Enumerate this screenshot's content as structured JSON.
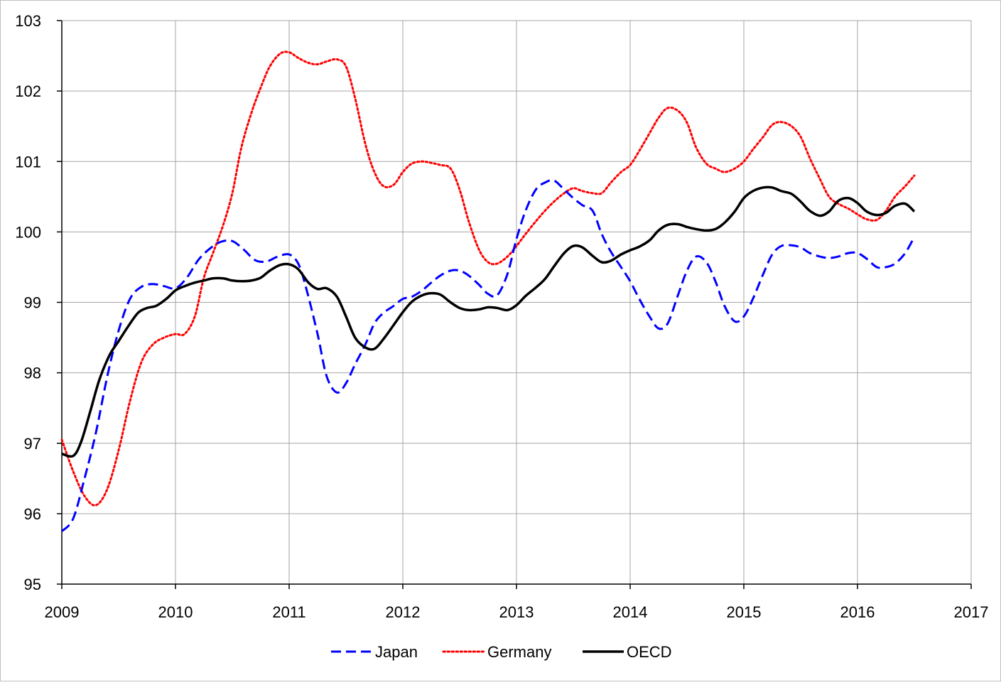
{
  "chart_data": {
    "type": "line",
    "title": "",
    "xlabel": "",
    "ylabel": "",
    "xlim": [
      2009,
      2017
    ],
    "ylim": [
      95,
      103
    ],
    "x_ticks": [
      "2009",
      "2010",
      "2011",
      "2012",
      "2013",
      "2014",
      "2015",
      "2016",
      "2017"
    ],
    "y_ticks": [
      "95",
      "96",
      "97",
      "98",
      "99",
      "100",
      "101",
      "102",
      "103"
    ],
    "grid": true,
    "legend_position": "bottom-center",
    "series": [
      {
        "name": "Japan",
        "color": "#0000ff",
        "style": "dashed",
        "points": [
          [
            2009.0,
            95.75
          ],
          [
            2009.1,
            95.93
          ],
          [
            2009.2,
            96.5
          ],
          [
            2009.3,
            97.15
          ],
          [
            2009.4,
            97.95
          ],
          [
            2009.5,
            98.6
          ],
          [
            2009.6,
            99.05
          ],
          [
            2009.7,
            99.22
          ],
          [
            2009.8,
            99.26
          ],
          [
            2009.9,
            99.23
          ],
          [
            2010.0,
            99.2
          ],
          [
            2010.1,
            99.35
          ],
          [
            2010.2,
            99.6
          ],
          [
            2010.3,
            99.76
          ],
          [
            2010.4,
            99.86
          ],
          [
            2010.5,
            99.87
          ],
          [
            2010.6,
            99.75
          ],
          [
            2010.7,
            99.6
          ],
          [
            2010.8,
            99.58
          ],
          [
            2010.9,
            99.65
          ],
          [
            2011.0,
            99.68
          ],
          [
            2011.08,
            99.55
          ],
          [
            2011.15,
            99.2
          ],
          [
            2011.25,
            98.55
          ],
          [
            2011.33,
            97.95
          ],
          [
            2011.42,
            97.72
          ],
          [
            2011.5,
            97.85
          ],
          [
            2011.58,
            98.12
          ],
          [
            2011.67,
            98.4
          ],
          [
            2011.75,
            98.7
          ],
          [
            2011.83,
            98.85
          ],
          [
            2011.92,
            98.95
          ],
          [
            2012.0,
            99.05
          ],
          [
            2012.08,
            99.08
          ],
          [
            2012.17,
            99.17
          ],
          [
            2012.25,
            99.28
          ],
          [
            2012.33,
            99.38
          ],
          [
            2012.42,
            99.45
          ],
          [
            2012.5,
            99.45
          ],
          [
            2012.58,
            99.38
          ],
          [
            2012.67,
            99.25
          ],
          [
            2012.75,
            99.12
          ],
          [
            2012.83,
            99.1
          ],
          [
            2012.92,
            99.4
          ],
          [
            2013.0,
            99.9
          ],
          [
            2013.08,
            100.3
          ],
          [
            2013.17,
            100.6
          ],
          [
            2013.25,
            100.7
          ],
          [
            2013.33,
            100.73
          ],
          [
            2013.42,
            100.6
          ],
          [
            2013.5,
            100.48
          ],
          [
            2013.58,
            100.38
          ],
          [
            2013.67,
            100.3
          ],
          [
            2013.75,
            99.97
          ],
          [
            2013.83,
            99.72
          ],
          [
            2013.92,
            99.5
          ],
          [
            2014.0,
            99.3
          ],
          [
            2014.08,
            99.05
          ],
          [
            2014.17,
            98.8
          ],
          [
            2014.25,
            98.63
          ],
          [
            2014.33,
            98.7
          ],
          [
            2014.42,
            99.1
          ],
          [
            2014.5,
            99.45
          ],
          [
            2014.58,
            99.65
          ],
          [
            2014.67,
            99.57
          ],
          [
            2014.75,
            99.3
          ],
          [
            2014.83,
            98.95
          ],
          [
            2014.92,
            98.73
          ],
          [
            2015.0,
            98.8
          ],
          [
            2015.08,
            99.05
          ],
          [
            2015.17,
            99.4
          ],
          [
            2015.25,
            99.68
          ],
          [
            2015.33,
            99.8
          ],
          [
            2015.42,
            99.81
          ],
          [
            2015.5,
            99.78
          ],
          [
            2015.58,
            99.7
          ],
          [
            2015.67,
            99.65
          ],
          [
            2015.75,
            99.63
          ],
          [
            2015.83,
            99.65
          ],
          [
            2015.92,
            99.7
          ],
          [
            2016.0,
            99.7
          ],
          [
            2016.08,
            99.62
          ],
          [
            2016.17,
            99.5
          ],
          [
            2016.25,
            99.5
          ],
          [
            2016.33,
            99.55
          ],
          [
            2016.42,
            99.7
          ],
          [
            2016.5,
            99.93
          ]
        ]
      },
      {
        "name": "Germany",
        "color": "#ff0000",
        "style": "dotted",
        "points": [
          [
            2009.0,
            97.05
          ],
          [
            2009.1,
            96.6
          ],
          [
            2009.2,
            96.25
          ],
          [
            2009.3,
            96.12
          ],
          [
            2009.4,
            96.35
          ],
          [
            2009.5,
            96.9
          ],
          [
            2009.6,
            97.6
          ],
          [
            2009.7,
            98.15
          ],
          [
            2009.8,
            98.4
          ],
          [
            2009.9,
            98.5
          ],
          [
            2010.0,
            98.55
          ],
          [
            2010.08,
            98.55
          ],
          [
            2010.17,
            98.8
          ],
          [
            2010.25,
            99.35
          ],
          [
            2010.33,
            99.7
          ],
          [
            2010.42,
            100.1
          ],
          [
            2010.5,
            100.55
          ],
          [
            2010.58,
            101.2
          ],
          [
            2010.67,
            101.7
          ],
          [
            2010.75,
            102.05
          ],
          [
            2010.83,
            102.35
          ],
          [
            2010.92,
            102.53
          ],
          [
            2011.0,
            102.55
          ],
          [
            2011.08,
            102.47
          ],
          [
            2011.17,
            102.4
          ],
          [
            2011.25,
            102.38
          ],
          [
            2011.33,
            102.42
          ],
          [
            2011.42,
            102.45
          ],
          [
            2011.5,
            102.35
          ],
          [
            2011.58,
            101.9
          ],
          [
            2011.67,
            101.25
          ],
          [
            2011.75,
            100.85
          ],
          [
            2011.83,
            100.65
          ],
          [
            2011.92,
            100.67
          ],
          [
            2012.0,
            100.85
          ],
          [
            2012.08,
            100.97
          ],
          [
            2012.17,
            101.0
          ],
          [
            2012.25,
            100.98
          ],
          [
            2012.33,
            100.95
          ],
          [
            2012.42,
            100.9
          ],
          [
            2012.5,
            100.6
          ],
          [
            2012.58,
            100.15
          ],
          [
            2012.67,
            99.75
          ],
          [
            2012.75,
            99.57
          ],
          [
            2012.83,
            99.55
          ],
          [
            2012.92,
            99.65
          ],
          [
            2013.0,
            99.8
          ],
          [
            2013.08,
            99.97
          ],
          [
            2013.17,
            100.15
          ],
          [
            2013.25,
            100.3
          ],
          [
            2013.33,
            100.43
          ],
          [
            2013.42,
            100.55
          ],
          [
            2013.5,
            100.62
          ],
          [
            2013.58,
            100.58
          ],
          [
            2013.67,
            100.55
          ],
          [
            2013.75,
            100.55
          ],
          [
            2013.83,
            100.7
          ],
          [
            2013.92,
            100.85
          ],
          [
            2014.0,
            100.95
          ],
          [
            2014.08,
            101.15
          ],
          [
            2014.17,
            101.4
          ],
          [
            2014.25,
            101.62
          ],
          [
            2014.33,
            101.76
          ],
          [
            2014.42,
            101.72
          ],
          [
            2014.5,
            101.55
          ],
          [
            2014.58,
            101.2
          ],
          [
            2014.67,
            100.97
          ],
          [
            2014.75,
            100.9
          ],
          [
            2014.83,
            100.85
          ],
          [
            2014.92,
            100.9
          ],
          [
            2015.0,
            101.0
          ],
          [
            2015.08,
            101.17
          ],
          [
            2015.17,
            101.35
          ],
          [
            2015.25,
            101.52
          ],
          [
            2015.33,
            101.56
          ],
          [
            2015.42,
            101.5
          ],
          [
            2015.5,
            101.35
          ],
          [
            2015.58,
            101.05
          ],
          [
            2015.67,
            100.75
          ],
          [
            2015.75,
            100.5
          ],
          [
            2015.83,
            100.4
          ],
          [
            2015.92,
            100.33
          ],
          [
            2016.0,
            100.25
          ],
          [
            2016.08,
            100.18
          ],
          [
            2016.17,
            100.17
          ],
          [
            2016.25,
            100.3
          ],
          [
            2016.33,
            100.5
          ],
          [
            2016.42,
            100.65
          ],
          [
            2016.5,
            100.8
          ]
        ]
      },
      {
        "name": "OECD",
        "color": "#000000",
        "style": "solid",
        "points": [
          [
            2009.0,
            96.85
          ],
          [
            2009.1,
            96.82
          ],
          [
            2009.17,
            97.02
          ],
          [
            2009.25,
            97.45
          ],
          [
            2009.33,
            97.9
          ],
          [
            2009.42,
            98.25
          ],
          [
            2009.5,
            98.45
          ],
          [
            2009.58,
            98.65
          ],
          [
            2009.67,
            98.85
          ],
          [
            2009.75,
            98.92
          ],
          [
            2009.83,
            98.95
          ],
          [
            2009.92,
            99.05
          ],
          [
            2010.0,
            99.17
          ],
          [
            2010.08,
            99.23
          ],
          [
            2010.17,
            99.28
          ],
          [
            2010.25,
            99.31
          ],
          [
            2010.33,
            99.34
          ],
          [
            2010.42,
            99.34
          ],
          [
            2010.5,
            99.31
          ],
          [
            2010.58,
            99.3
          ],
          [
            2010.67,
            99.31
          ],
          [
            2010.75,
            99.35
          ],
          [
            2010.83,
            99.45
          ],
          [
            2010.92,
            99.53
          ],
          [
            2011.0,
            99.54
          ],
          [
            2011.08,
            99.47
          ],
          [
            2011.17,
            99.28
          ],
          [
            2011.25,
            99.19
          ],
          [
            2011.33,
            99.2
          ],
          [
            2011.42,
            99.08
          ],
          [
            2011.5,
            98.8
          ],
          [
            2011.58,
            98.5
          ],
          [
            2011.67,
            98.36
          ],
          [
            2011.75,
            98.34
          ],
          [
            2011.83,
            98.48
          ],
          [
            2011.92,
            98.68
          ],
          [
            2012.0,
            98.86
          ],
          [
            2012.08,
            99.01
          ],
          [
            2012.17,
            99.1
          ],
          [
            2012.25,
            99.13
          ],
          [
            2012.33,
            99.11
          ],
          [
            2012.42,
            99.0
          ],
          [
            2012.5,
            98.92
          ],
          [
            2012.58,
            98.89
          ],
          [
            2012.67,
            98.9
          ],
          [
            2012.75,
            98.93
          ],
          [
            2012.83,
            98.92
          ],
          [
            2012.92,
            98.89
          ],
          [
            2013.0,
            98.96
          ],
          [
            2013.08,
            99.09
          ],
          [
            2013.17,
            99.21
          ],
          [
            2013.25,
            99.33
          ],
          [
            2013.33,
            99.51
          ],
          [
            2013.42,
            99.7
          ],
          [
            2013.5,
            99.8
          ],
          [
            2013.58,
            99.78
          ],
          [
            2013.67,
            99.66
          ],
          [
            2013.75,
            99.57
          ],
          [
            2013.83,
            99.59
          ],
          [
            2013.92,
            99.68
          ],
          [
            2014.0,
            99.74
          ],
          [
            2014.08,
            99.79
          ],
          [
            2014.17,
            99.88
          ],
          [
            2014.25,
            100.02
          ],
          [
            2014.33,
            100.1
          ],
          [
            2014.42,
            100.11
          ],
          [
            2014.5,
            100.07
          ],
          [
            2014.58,
            100.04
          ],
          [
            2014.67,
            100.02
          ],
          [
            2014.75,
            100.04
          ],
          [
            2014.83,
            100.13
          ],
          [
            2014.92,
            100.29
          ],
          [
            2015.0,
            100.48
          ],
          [
            2015.08,
            100.58
          ],
          [
            2015.17,
            100.63
          ],
          [
            2015.25,
            100.63
          ],
          [
            2015.33,
            100.58
          ],
          [
            2015.42,
            100.54
          ],
          [
            2015.5,
            100.43
          ],
          [
            2015.58,
            100.3
          ],
          [
            2015.67,
            100.23
          ],
          [
            2015.75,
            100.29
          ],
          [
            2015.83,
            100.44
          ],
          [
            2015.92,
            100.48
          ],
          [
            2016.0,
            100.41
          ],
          [
            2016.08,
            100.29
          ],
          [
            2016.17,
            100.24
          ],
          [
            2016.25,
            100.27
          ],
          [
            2016.33,
            100.37
          ],
          [
            2016.42,
            100.4
          ],
          [
            2016.5,
            100.29
          ]
        ]
      }
    ]
  }
}
